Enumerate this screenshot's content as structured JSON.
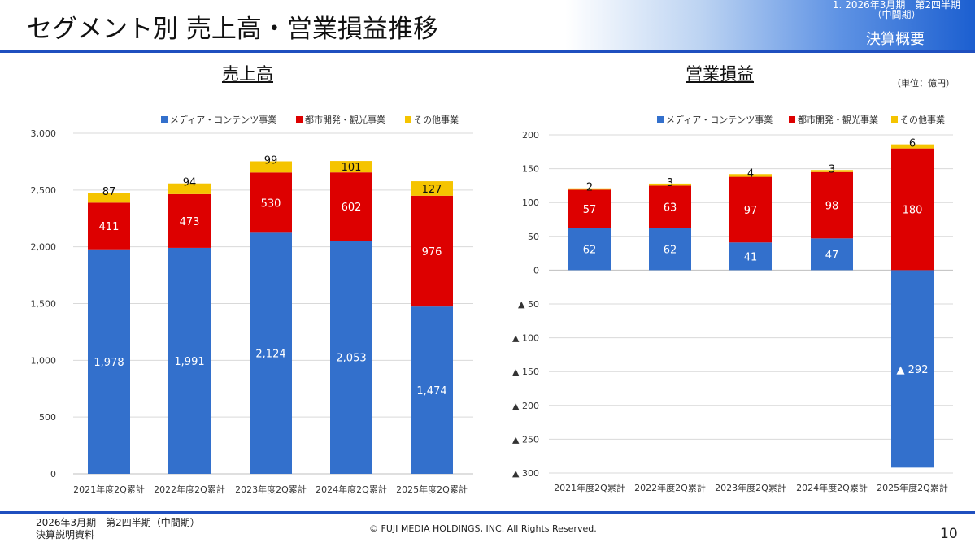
{
  "header": {
    "title": "セグメント別 売上高・営業損益推移",
    "period_line1": "1.  2026年3月期　第2四半期",
    "period_line2": "（中間期）",
    "section": "決算概要"
  },
  "colors": {
    "media": "#3370cc",
    "urban": "#dd0000",
    "other": "#f5c400",
    "grid": "#d9d9d9",
    "axis": "#bfbfbf",
    "accent": "#1f4fbf"
  },
  "unit_label": "（単位：億円）",
  "chart_data": [
    {
      "type": "bar",
      "stacked": true,
      "title": "売上高",
      "categories": [
        "2021年度2Q累計",
        "2022年度2Q累計",
        "2023年度2Q累計",
        "2024年度2Q累計",
        "2025年度2Q累計"
      ],
      "series": [
        {
          "name": "メディア・コンテンツ事業",
          "values": [
            1978,
            1991,
            2124,
            2053,
            1474
          ],
          "labels": [
            "1,978",
            "1,991",
            "2,124",
            "2,053",
            "1,474"
          ]
        },
        {
          "name": "都市開発・観光事業",
          "values": [
            411,
            473,
            530,
            602,
            976
          ],
          "labels": [
            "411",
            "473",
            "530",
            "602",
            "976"
          ]
        },
        {
          "name": "その他事業",
          "values": [
            87,
            94,
            99,
            101,
            127
          ],
          "labels": [
            "87",
            "94",
            "99",
            "101",
            "127"
          ]
        }
      ],
      "ylim": [
        0,
        3000
      ],
      "yticks": [
        0,
        500,
        1000,
        1500,
        2000,
        2500,
        3000
      ],
      "ytick_labels": [
        "0",
        "500",
        "1,000",
        "1,500",
        "2,000",
        "2,500",
        "3,000"
      ],
      "legend": "top",
      "grid": true
    },
    {
      "type": "bar",
      "stacked": true,
      "title": "営業損益",
      "categories": [
        "2021年度2Q累計",
        "2022年度2Q累計",
        "2023年度2Q累計",
        "2024年度2Q累計",
        "2025年度2Q累計"
      ],
      "series": [
        {
          "name": "メディア・コンテンツ事業",
          "values": [
            62,
            62,
            41,
            47,
            -292
          ],
          "labels": [
            "62",
            "62",
            "41",
            "47",
            "▲ 292"
          ]
        },
        {
          "name": "都市開発・観光事業",
          "values": [
            57,
            63,
            97,
            98,
            180
          ],
          "labels": [
            "57",
            "63",
            "97",
            "98",
            "180"
          ]
        },
        {
          "name": "その他事業",
          "values": [
            2,
            3,
            4,
            3,
            6
          ],
          "labels": [
            "2",
            "3",
            "4",
            "3",
            "6"
          ]
        }
      ],
      "ylim": [
        -300,
        200
      ],
      "yticks": [
        200,
        150,
        100,
        50,
        0,
        -50,
        -100,
        -150,
        -200,
        -250,
        -300
      ],
      "ytick_labels": [
        "200",
        "150",
        "100",
        "50",
        "0",
        "▲ 50",
        "▲ 100",
        "▲ 150",
        "▲ 200",
        "▲ 250",
        "▲ 300"
      ],
      "legend": "top",
      "grid": true
    }
  ],
  "footer": {
    "line1": "2026年3月期　第2四半期（中間期）",
    "line2": "決算説明資料",
    "copyright": "©  FUJI MEDIA HOLDINGS, INC. All Rights Reserved.",
    "page_number": "10"
  }
}
